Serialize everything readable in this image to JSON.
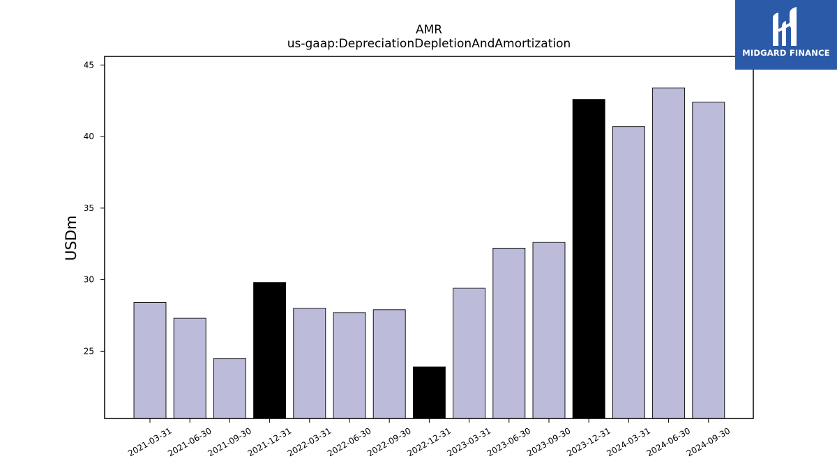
{
  "brand": {
    "name": "MIDGARD FINANCE",
    "color": "#2a5aa8"
  },
  "chart_data": {
    "type": "bar",
    "title": "AMR",
    "subtitle": "us-gaap:DepreciationDepletionAndAmortization",
    "xlabel": "",
    "ylabel": "USDm",
    "categories": [
      "2021-03-31",
      "2021-06-30",
      "2021-09-30",
      "2021-12-31",
      "2022-03-31",
      "2022-06-30",
      "2022-09-30",
      "2022-12-31",
      "2023-03-31",
      "2023-06-30",
      "2023-09-30",
      "2023-12-31",
      "2024-03-31",
      "2024-06-30",
      "2024-09-30"
    ],
    "values": [
      28.4,
      27.3,
      24.5,
      29.8,
      28.0,
      27.7,
      27.9,
      23.9,
      29.4,
      32.2,
      32.6,
      42.6,
      40.7,
      43.4,
      42.4
    ],
    "highlighted": [
      false,
      false,
      false,
      true,
      false,
      false,
      false,
      true,
      false,
      false,
      false,
      true,
      false,
      false,
      false
    ],
    "ylim": [
      20.3,
      45.6
    ],
    "yticks": [
      25,
      30,
      35,
      40,
      45
    ],
    "colors": {
      "bar": "#bdbbda",
      "highlight": "#000000",
      "edge": "#000000"
    },
    "grid": false
  }
}
